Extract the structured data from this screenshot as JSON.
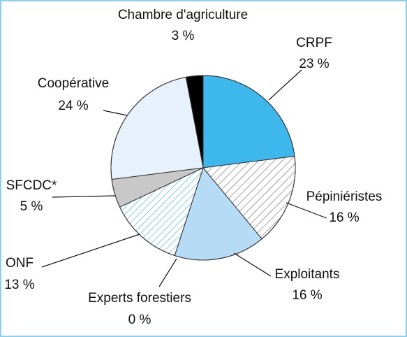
{
  "chart_data": {
    "type": "pie",
    "categories": [
      "Chambre d'agriculture",
      "CRPF",
      "Pépiniéristes",
      "Exploitants",
      "Experts forestiers",
      "ONF",
      "SFCDC*",
      "Coopérative"
    ],
    "values": [
      3,
      23,
      16,
      16,
      0,
      13,
      5,
      24
    ],
    "value_labels": [
      "3 %",
      "23 %",
      "16 %",
      "16 %",
      "0 %",
      "13 %",
      "5 %",
      "24 %"
    ],
    "colors": [
      "#000000",
      "#3db7ec",
      "#666666",
      "#b6dbf4",
      "#ffffff",
      "#3aaed6",
      "#c8c8c8",
      "#e6f1fb"
    ],
    "hatched": [
      false,
      false,
      true,
      false,
      false,
      true,
      false,
      false
    ]
  }
}
